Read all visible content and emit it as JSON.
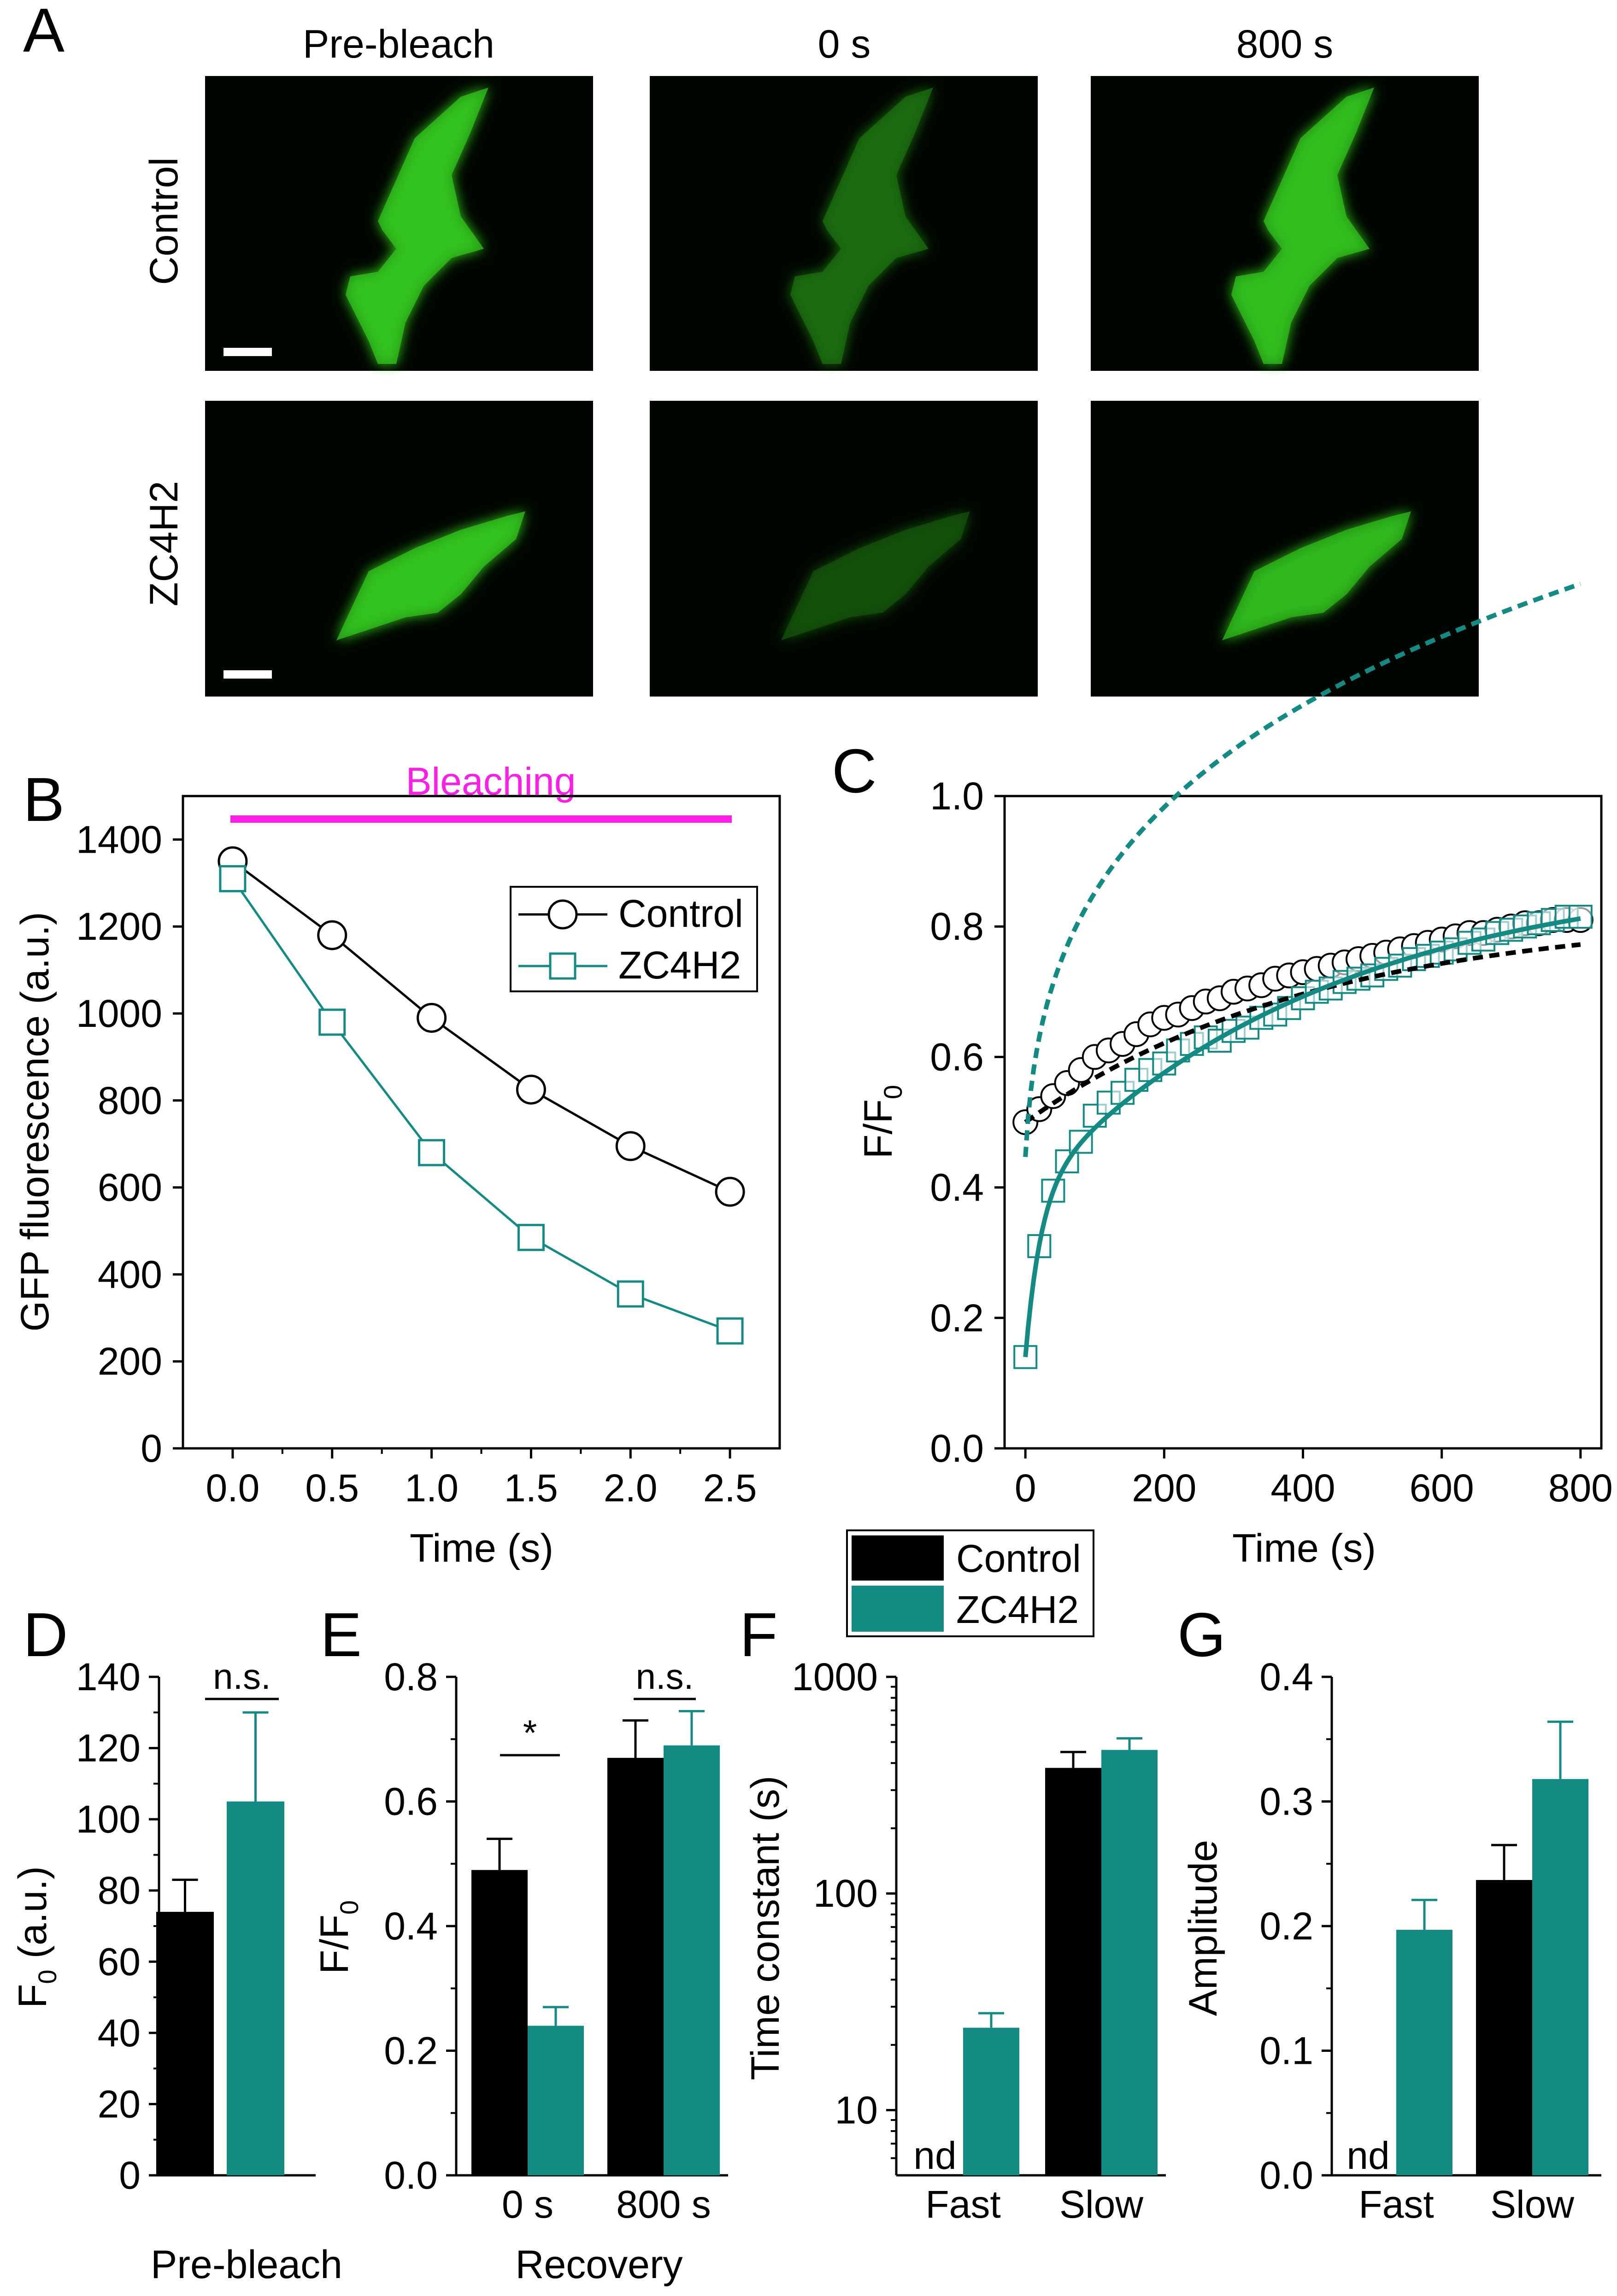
{
  "colors": {
    "black": "#000000",
    "teal": "#138b83",
    "magenta": "#ff1ee6",
    "cell_green": "#33c31f",
    "image_bg": "#000500"
  },
  "panel_labels": {
    "a": "A",
    "b": "B",
    "c": "C",
    "d": "D",
    "e": "E",
    "f": "F",
    "g": "G"
  },
  "panel_a": {
    "columns": [
      "Pre-bleach",
      "0 s",
      "800 s"
    ],
    "rows": [
      "Control",
      "ZC4H2"
    ],
    "intensity": [
      [
        1.0,
        0.55,
        0.98
      ],
      [
        1.0,
        0.4,
        0.95
      ]
    ]
  },
  "chart_data": [
    {
      "id": "B",
      "type": "line",
      "xlabel": "Time (s)",
      "ylabel": "GFP fluorescence (a.u.)",
      "xlim": [
        -0.25,
        2.75
      ],
      "ylim": [
        0,
        1500
      ],
      "xticks": [
        "0.0",
        "0.5",
        "1.0",
        "1.5",
        "2.0",
        "2.5"
      ],
      "yticks": [
        "0",
        "200",
        "400",
        "600",
        "800",
        "1000",
        "1200",
        "1400"
      ],
      "annotation": "Bleaching",
      "x": [
        0,
        0.5,
        1.0,
        1.5,
        2.0,
        2.5
      ],
      "series": [
        {
          "name": "Control",
          "values": [
            1350,
            1180,
            990,
            825,
            695,
            590
          ]
        },
        {
          "name": "ZC4H2",
          "values": [
            1310,
            980,
            680,
            485,
            355,
            270
          ]
        }
      ]
    },
    {
      "id": "C",
      "type": "scatter",
      "xlabel": "Time (s)",
      "ylabel": "F/F",
      "ylabel_sub": "0",
      "xlim": [
        -30,
        830
      ],
      "ylim": [
        0,
        1.0
      ],
      "xticks": [
        "0",
        "200",
        "400",
        "600",
        "800"
      ],
      "yticks": [
        "0.0",
        "0.2",
        "0.4",
        "0.6",
        "0.8",
        "1.0"
      ],
      "series": [
        {
          "name": "Control",
          "x": [
            0,
            20,
            40,
            60,
            80,
            100,
            120,
            140,
            160,
            180,
            200,
            220,
            240,
            260,
            280,
            300,
            320,
            340,
            360,
            380,
            400,
            420,
            440,
            460,
            480,
            500,
            520,
            540,
            560,
            580,
            600,
            620,
            640,
            660,
            680,
            700,
            720,
            740,
            760,
            780,
            800
          ],
          "values": [
            0.5,
            0.52,
            0.54,
            0.56,
            0.58,
            0.6,
            0.61,
            0.62,
            0.635,
            0.65,
            0.66,
            0.665,
            0.675,
            0.685,
            0.69,
            0.7,
            0.705,
            0.71,
            0.72,
            0.725,
            0.73,
            0.735,
            0.74,
            0.745,
            0.75,
            0.755,
            0.76,
            0.765,
            0.77,
            0.775,
            0.78,
            0.785,
            0.79,
            0.79,
            0.795,
            0.8,
            0.805,
            0.805,
            0.81,
            0.81,
            0.81
          ]
        },
        {
          "name": "ZC4H2",
          "x": [
            0,
            20,
            40,
            60,
            80,
            100,
            120,
            140,
            160,
            180,
            200,
            220,
            240,
            260,
            280,
            300,
            320,
            340,
            360,
            380,
            400,
            420,
            440,
            460,
            480,
            500,
            520,
            540,
            560,
            580,
            600,
            620,
            640,
            660,
            680,
            700,
            720,
            740,
            760,
            780,
            800
          ],
          "values": [
            0.14,
            0.31,
            0.395,
            0.44,
            0.47,
            0.51,
            0.53,
            0.545,
            0.565,
            0.58,
            0.59,
            0.61,
            0.62,
            0.63,
            0.625,
            0.64,
            0.645,
            0.66,
            0.665,
            0.675,
            0.69,
            0.7,
            0.705,
            0.715,
            0.72,
            0.725,
            0.735,
            0.74,
            0.75,
            0.755,
            0.76,
            0.765,
            0.775,
            0.78,
            0.79,
            0.795,
            0.8,
            0.805,
            0.81,
            0.815,
            0.815
          ]
        }
      ]
    },
    {
      "id": "D",
      "type": "bar",
      "ylabel": "F",
      "ylabel_sub": "0",
      "ylabel_tail": " (a.u.)",
      "xlabel": "Pre-bleach",
      "ylim": [
        0,
        140
      ],
      "yticks": [
        "0",
        "20",
        "40",
        "60",
        "80",
        "100",
        "120",
        "140"
      ],
      "series": [
        {
          "name": "Control",
          "values": [
            74
          ],
          "errors": [
            9
          ]
        },
        {
          "name": "ZC4H2",
          "values": [
            105
          ],
          "errors": [
            25
          ]
        }
      ],
      "significance": [
        {
          "label": "n.s."
        }
      ]
    },
    {
      "id": "E",
      "type": "bar",
      "ylabel": "F/F",
      "ylabel_sub": "0",
      "xlabel": "Recovery",
      "categories": [
        "0 s",
        "800 s"
      ],
      "ylim": [
        0,
        0.8
      ],
      "yticks": [
        "0.0",
        "0.2",
        "0.4",
        "0.6",
        "0.8"
      ],
      "series": [
        {
          "name": "Control",
          "values": [
            0.49,
            0.67
          ],
          "errors": [
            0.05,
            0.06
          ]
        },
        {
          "name": "ZC4H2",
          "values": [
            0.24,
            0.69
          ],
          "errors": [
            0.03,
            0.055
          ]
        }
      ],
      "significance": [
        {
          "label": "*"
        },
        {
          "label": "n.s."
        }
      ]
    },
    {
      "id": "F",
      "type": "bar",
      "yscale": "log",
      "ylabel": "Time constant (s)",
      "categories": [
        "Fast",
        "Slow"
      ],
      "ylim": [
        5,
        1000
      ],
      "yticks": [
        "10",
        "100",
        "1000"
      ],
      "nd_label": "nd",
      "legend": [
        "Control",
        "ZC4H2"
      ],
      "series": [
        {
          "name": "Control",
          "values": [
            null,
            380
          ],
          "errors": [
            null,
            70
          ]
        },
        {
          "name": "ZC4H2",
          "values": [
            24,
            460
          ],
          "errors": [
            4,
            60
          ]
        }
      ]
    },
    {
      "id": "G",
      "type": "bar",
      "ylabel": "Amplitude",
      "categories": [
        "Fast",
        "Slow"
      ],
      "ylim": [
        0,
        0.4
      ],
      "yticks": [
        "0.0",
        "0.1",
        "0.2",
        "0.3",
        "0.4"
      ],
      "nd_label": "nd",
      "series": [
        {
          "name": "Control",
          "values": [
            null,
            0.237
          ],
          "errors": [
            null,
            0.028
          ]
        },
        {
          "name": "ZC4H2",
          "values": [
            0.197,
            0.318
          ],
          "errors": [
            0.024,
            0.046
          ]
        }
      ]
    }
  ]
}
